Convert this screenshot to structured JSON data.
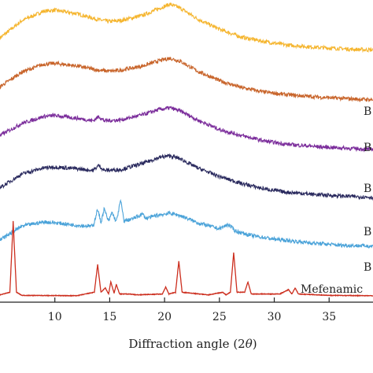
{
  "chart_data": {
    "type": "line",
    "title": "",
    "xlabel": "Diffraction angle (2θ)",
    "xlabel_parts": {
      "prefix": "Diffraction angle (2",
      "theta": "θ",
      "suffix": ")"
    },
    "ylabel": "",
    "xlim": [
      5,
      39
    ],
    "xticks": [
      10,
      15,
      20,
      25,
      30,
      35
    ],
    "grid": false,
    "legend": "inline-right",
    "series": [
      {
        "name": "B",
        "color": "#f5b52e",
        "offset": 5,
        "points": [
          [
            5,
            0.9
          ],
          [
            7,
            1.9
          ],
          [
            9,
            2.45
          ],
          [
            10,
            2.5
          ],
          [
            12,
            2.3
          ],
          [
            14,
            1.95
          ],
          [
            15,
            1.85
          ],
          [
            16,
            1.9
          ],
          [
            18,
            2.2
          ],
          [
            19.5,
            2.6
          ],
          [
            20.5,
            2.85
          ],
          [
            21.5,
            2.6
          ],
          [
            23,
            2.0
          ],
          [
            25,
            1.4
          ],
          [
            27,
            0.95
          ],
          [
            29,
            0.7
          ],
          [
            31,
            0.5
          ],
          [
            34,
            0.35
          ],
          [
            37,
            0.25
          ],
          [
            39,
            0.2
          ]
        ]
      },
      {
        "name": "B",
        "color": "#c8642a",
        "offset": 4,
        "points": [
          [
            5,
            0.9
          ],
          [
            7,
            1.75
          ],
          [
            9,
            2.2
          ],
          [
            10,
            2.25
          ],
          [
            12,
            2.1
          ],
          [
            14,
            1.85
          ],
          [
            15,
            1.8
          ],
          [
            16,
            1.85
          ],
          [
            18,
            2.1
          ],
          [
            19.5,
            2.4
          ],
          [
            20.5,
            2.55
          ],
          [
            21.5,
            2.35
          ],
          [
            23,
            1.8
          ],
          [
            25,
            1.25
          ],
          [
            27,
            0.85
          ],
          [
            29,
            0.6
          ],
          [
            31,
            0.45
          ],
          [
            34,
            0.3
          ],
          [
            37,
            0.2
          ],
          [
            39,
            0.15
          ]
        ]
      },
      {
        "name": "B",
        "color": "#7b2d9b",
        "offset": 3,
        "points": [
          [
            5,
            0.9
          ],
          [
            7,
            1.6
          ],
          [
            9,
            2.0
          ],
          [
            10,
            2.05
          ],
          [
            12,
            1.9
          ],
          [
            13.5,
            1.75
          ],
          [
            14,
            2.0
          ],
          [
            14.5,
            1.75
          ],
          [
            16,
            1.8
          ],
          [
            18,
            2.1
          ],
          [
            19.5,
            2.4
          ],
          [
            20.5,
            2.5
          ],
          [
            21.5,
            2.3
          ],
          [
            23,
            1.8
          ],
          [
            25,
            1.25
          ],
          [
            27,
            0.9
          ],
          [
            29,
            0.6
          ],
          [
            31,
            0.4
          ],
          [
            34,
            0.25
          ],
          [
            37,
            0.15
          ],
          [
            39,
            0.1
          ]
        ]
      },
      {
        "name": "B",
        "color": "#2a2a5e",
        "offset": 2,
        "points": [
          [
            5,
            0.7
          ],
          [
            7,
            1.5
          ],
          [
            9,
            1.85
          ],
          [
            10,
            1.9
          ],
          [
            12,
            1.8
          ],
          [
            13.5,
            1.7
          ],
          [
            14,
            2.0
          ],
          [
            14.5,
            1.7
          ],
          [
            16,
            1.75
          ],
          [
            18,
            2.1
          ],
          [
            19.5,
            2.45
          ],
          [
            20.5,
            2.55
          ],
          [
            21.5,
            2.35
          ],
          [
            23,
            1.85
          ],
          [
            25,
            1.35
          ],
          [
            27,
            0.95
          ],
          [
            29,
            0.65
          ],
          [
            31,
            0.45
          ],
          [
            34,
            0.3
          ],
          [
            37,
            0.2
          ],
          [
            39,
            0.15
          ]
        ]
      },
      {
        "name": "B",
        "color": "#4ba3d9",
        "offset": 1,
        "points": [
          [
            5,
            0.5
          ],
          [
            7,
            1.3
          ],
          [
            9,
            1.55
          ],
          [
            10,
            1.5
          ],
          [
            12,
            1.35
          ],
          [
            13.5,
            1.3
          ],
          [
            13.9,
            2.3
          ],
          [
            14.2,
            1.5
          ],
          [
            14.5,
            2.3
          ],
          [
            14.9,
            1.55
          ],
          [
            15.2,
            2.1
          ],
          [
            15.6,
            1.55
          ],
          [
            16.0,
            2.8
          ],
          [
            16.3,
            1.6
          ],
          [
            17,
            1.7
          ],
          [
            18,
            2.0
          ],
          [
            18.3,
            1.75
          ],
          [
            19.5,
            1.95
          ],
          [
            20.5,
            2.05
          ],
          [
            21.5,
            1.9
          ],
          [
            23,
            1.5
          ],
          [
            25,
            1.15
          ],
          [
            25.8,
            1.4
          ],
          [
            26.5,
            1.0
          ],
          [
            28,
            0.75
          ],
          [
            30,
            0.55
          ],
          [
            33,
            0.35
          ],
          [
            36,
            0.2
          ],
          [
            39,
            0.15
          ]
        ]
      },
      {
        "name": "Mefenamic",
        "color": "#cc2e1e",
        "offset": 0,
        "points": [
          [
            5,
            0.15
          ],
          [
            5.9,
            0.3
          ],
          [
            6.2,
            4.4
          ],
          [
            6.5,
            0.3
          ],
          [
            7,
            0.12
          ],
          [
            12,
            0.1
          ],
          [
            13.6,
            0.3
          ],
          [
            13.9,
            1.9
          ],
          [
            14.2,
            0.3
          ],
          [
            14.6,
            0.55
          ],
          [
            14.9,
            0.2
          ],
          [
            15.1,
            0.9
          ],
          [
            15.4,
            0.25
          ],
          [
            15.6,
            0.75
          ],
          [
            15.9,
            0.2
          ],
          [
            16.8,
            0.2
          ],
          [
            17.5,
            0.15
          ],
          [
            19.8,
            0.2
          ],
          [
            20.1,
            0.6
          ],
          [
            20.4,
            0.2
          ],
          [
            21.0,
            0.3
          ],
          [
            21.3,
            2.1
          ],
          [
            21.6,
            0.3
          ],
          [
            24,
            0.15
          ],
          [
            25.3,
            0.3
          ],
          [
            25.6,
            0.15
          ],
          [
            26.0,
            0.3
          ],
          [
            26.3,
            2.6
          ],
          [
            26.6,
            0.3
          ],
          [
            27.3,
            0.3
          ],
          [
            27.6,
            0.9
          ],
          [
            27.9,
            0.2
          ],
          [
            30.5,
            0.2
          ],
          [
            31.3,
            0.45
          ],
          [
            31.6,
            0.2
          ],
          [
            31.9,
            0.55
          ],
          [
            32.2,
            0.2
          ],
          [
            35,
            0.12
          ],
          [
            39,
            0.1
          ]
        ]
      }
    ]
  }
}
